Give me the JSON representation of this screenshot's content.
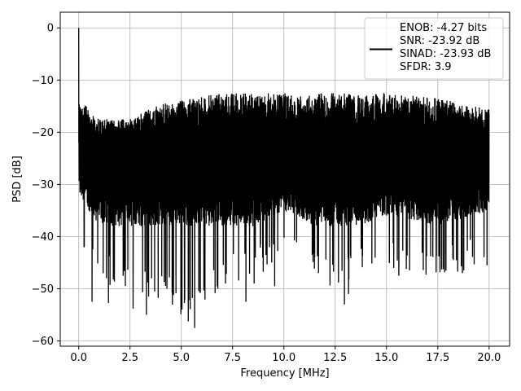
{
  "chart_data": {
    "type": "line",
    "title": "",
    "xlabel": "Frequency [MHz]",
    "ylabel": "PSD [dB]",
    "xlim": [
      -0.9,
      21.0
    ],
    "ylim": [
      -61.0,
      3.0
    ],
    "xticks": [
      0.0,
      2.5,
      5.0,
      7.5,
      10.0,
      12.5,
      15.0,
      17.5,
      20.0
    ],
    "xtick_labels": [
      "0.0",
      "2.5",
      "5.0",
      "7.5",
      "10.0",
      "12.5",
      "15.0",
      "17.5",
      "20.0"
    ],
    "yticks": [
      0,
      -10,
      -20,
      -30,
      -40,
      -50,
      -60
    ],
    "ytick_labels": [
      "0",
      "−10",
      "−20",
      "−30",
      "−40",
      "−50",
      "−60"
    ],
    "grid": true,
    "legend_position": "top-right",
    "legend_lines": [
      "ENOB: -4.27 bits",
      "SNR: -23.92 dB",
      "SINAD: -23.93 dB",
      "SFDR: 3.9"
    ],
    "series": [
      {
        "color": "#000000",
        "x_range": [
          0.0,
          20.0
        ],
        "peak": {
          "x": 0.0,
          "y": 0.0
        },
        "upper_envelope": {
          "x": [
            0.0,
            1.0,
            2.5,
            4.0,
            5.5,
            7.0,
            8.5,
            10.0,
            12.5,
            15.0,
            17.5,
            20.0
          ],
          "y": [
            -11,
            -15,
            -15,
            -12,
            -11,
            -10,
            -10,
            -10,
            -10,
            -10,
            -11,
            -13
          ]
        },
        "lower_envelope": {
          "x": [
            0.0,
            1.0,
            2.5,
            4.0,
            5.5,
            7.0,
            8.5,
            10.0,
            12.5,
            15.0,
            17.5,
            20.0
          ],
          "y": [
            -42,
            -48,
            -52,
            -52,
            -57,
            -50,
            -48,
            -45,
            -50,
            -46,
            -48,
            -45
          ]
        },
        "noise_floor_center": -23.9,
        "deep_dips": [
          {
            "x": 0.65,
            "y": -52.5
          },
          {
            "x": 1.45,
            "y": -52.7
          },
          {
            "x": 2.65,
            "y": -53.8
          },
          {
            "x": 3.3,
            "y": -55.0
          },
          {
            "x": 3.7,
            "y": -50.5
          },
          {
            "x": 4.3,
            "y": -50.0
          },
          {
            "x": 5.65,
            "y": -57.5
          },
          {
            "x": 6.75,
            "y": -49.5
          },
          {
            "x": 8.15,
            "y": -52.5
          },
          {
            "x": 8.55,
            "y": -49.0
          },
          {
            "x": 9.55,
            "y": -49.5
          },
          {
            "x": 12.95,
            "y": -53.0
          },
          {
            "x": 13.15,
            "y": -51.0
          },
          {
            "x": 15.6,
            "y": -47.5
          },
          {
            "x": 17.9,
            "y": -46.5
          },
          {
            "x": 18.7,
            "y": -47.0
          },
          {
            "x": 19.9,
            "y": -45.5
          }
        ]
      }
    ]
  }
}
